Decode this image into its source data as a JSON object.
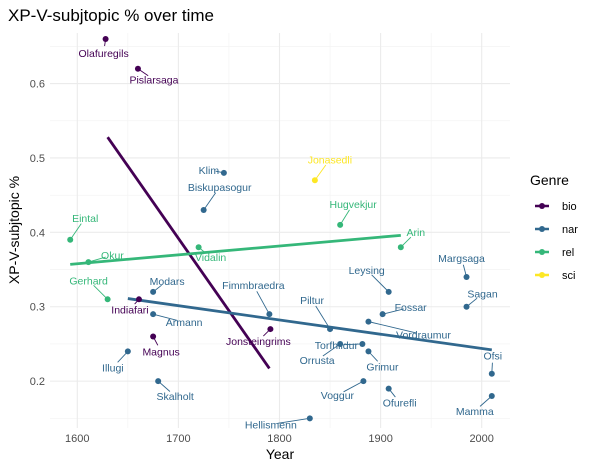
{
  "chart_data": {
    "type": "scatter",
    "title": "XP-V-subjtopic % over time",
    "xlabel": "Year",
    "ylabel": "XP-V-subjtopic %",
    "xlim": [
      1573,
      2028
    ],
    "ylim": [
      0.137,
      0.668
    ],
    "x_ticks": [
      1600,
      1700,
      1800,
      1900,
      2000
    ],
    "y_ticks": [
      0.2,
      0.3,
      0.4,
      0.5,
      0.6
    ],
    "grid": true,
    "legend_position": "right",
    "legend_title": "Genre",
    "series": [
      {
        "name": "bio",
        "color": "#440154",
        "points": [
          {
            "label": "Olafuregils",
            "x": 1628,
            "y": 0.66
          },
          {
            "label": "Pislarsaga",
            "x": 1660,
            "y": 0.62
          },
          {
            "label": "Indiafari",
            "x": 1661,
            "y": 0.31
          },
          {
            "label": "Magnus",
            "x": 1675,
            "y": 0.26
          },
          {
            "label": "Jonsteingrims",
            "x": 1791,
            "y": 0.27
          }
        ],
        "trend": {
          "x": [
            1630,
            1790
          ],
          "y": [
            0.528,
            0.217
          ]
        }
      },
      {
        "name": "nar",
        "color": "#31688E",
        "points": [
          {
            "label": "Klim",
            "x": 1745,
            "y": 0.48
          },
          {
            "label": "Biskupasogur",
            "x": 1725,
            "y": 0.43
          },
          {
            "label": "Modars",
            "x": 1675,
            "y": 0.32
          },
          {
            "label": "Armann",
            "x": 1675,
            "y": 0.29
          },
          {
            "label": "Illugi",
            "x": 1650,
            "y": 0.24
          },
          {
            "label": "Skalholt",
            "x": 1680,
            "y": 0.2
          },
          {
            "label": "Fimmbraedra",
            "x": 1790,
            "y": 0.29
          },
          {
            "label": "Piltur",
            "x": 1850,
            "y": 0.27
          },
          {
            "label": "Leysing",
            "x": 1908,
            "y": 0.32
          },
          {
            "label": "Fossar",
            "x": 1902,
            "y": 0.29
          },
          {
            "label": "Torfhildur",
            "x": 1882,
            "y": 0.25
          },
          {
            "label": "Vordraumur",
            "x": 1888,
            "y": 0.28
          },
          {
            "label": "Orrusta",
            "x": 1860,
            "y": 0.25
          },
          {
            "label": "Grimur",
            "x": 1888,
            "y": 0.24
          },
          {
            "label": "Voggur",
            "x": 1883,
            "y": 0.2
          },
          {
            "label": "Ofurefli",
            "x": 1908,
            "y": 0.19
          },
          {
            "label": "Hellismenn",
            "x": 1830,
            "y": 0.15
          },
          {
            "label": "Margsaga",
            "x": 1985,
            "y": 0.34
          },
          {
            "label": "Sagan",
            "x": 1985,
            "y": 0.3
          },
          {
            "label": "Ofsi",
            "x": 2010,
            "y": 0.21
          },
          {
            "label": "Mamma",
            "x": 2010,
            "y": 0.18
          }
        ],
        "trend": {
          "x": [
            1650,
            2010
          ],
          "y": [
            0.311,
            0.242
          ]
        }
      },
      {
        "name": "rel",
        "color": "#35B779",
        "points": [
          {
            "label": "Eintal",
            "x": 1593,
            "y": 0.39
          },
          {
            "label": "Okur",
            "x": 1611,
            "y": 0.36
          },
          {
            "label": "Gerhard",
            "x": 1630,
            "y": 0.31
          },
          {
            "label": "Vidalin",
            "x": 1720,
            "y": 0.38
          },
          {
            "label": "Hugvekjur",
            "x": 1860,
            "y": 0.41
          },
          {
            "label": "Arin",
            "x": 1920,
            "y": 0.38
          }
        ],
        "trend": {
          "x": [
            1593,
            1920
          ],
          "y": [
            0.357,
            0.396
          ]
        }
      },
      {
        "name": "sci",
        "color": "#FDE725",
        "points": [
          {
            "label": "Jonasedli",
            "x": 1835,
            "y": 0.47
          }
        ]
      }
    ]
  }
}
